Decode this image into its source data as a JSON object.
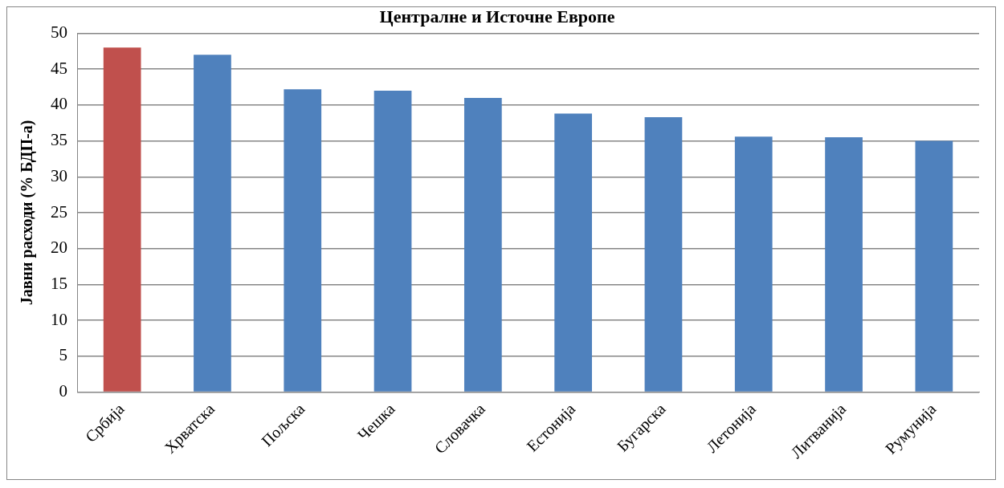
{
  "chart_data": {
    "type": "bar",
    "title": "Централне и Источне Европе",
    "ylabel": "Јавни расходи (% БДП-а)",
    "categories": [
      "Србија",
      "Хрватска",
      "Пољска",
      "Чешка",
      "Словачка",
      "Естонија",
      "Бугарска",
      "Летонија",
      "Литванија",
      "Румунија"
    ],
    "values": [
      48.0,
      47.0,
      42.2,
      42.0,
      41.0,
      38.8,
      38.3,
      35.6,
      35.5,
      35.0
    ],
    "colors": [
      "#c0504d",
      "#4f81bd",
      "#4f81bd",
      "#4f81bd",
      "#4f81bd",
      "#4f81bd",
      "#4f81bd",
      "#4f81bd",
      "#4f81bd",
      "#4f81bd"
    ],
    "ylim": [
      0,
      50
    ],
    "yticks": [
      0,
      5,
      10,
      15,
      20,
      25,
      30,
      35,
      40,
      45,
      50
    ],
    "grid": "y",
    "legend": false
  }
}
